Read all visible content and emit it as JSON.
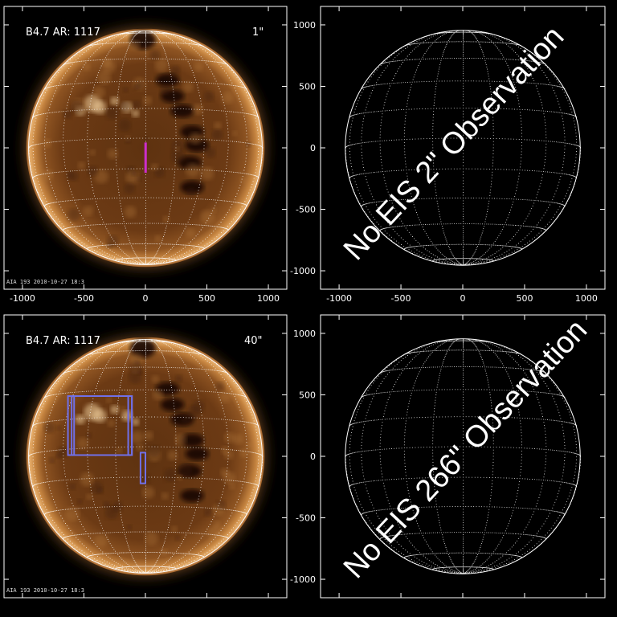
{
  "colors": {
    "background": "#000000",
    "frame": "#ffffff",
    "slit_marker": "#cc2fcc",
    "raster_box": "#7070e8",
    "label_white": "#ffffff",
    "label_magenta": "#cc44cc",
    "label_blue": "#8080ff",
    "sun_core": "#6a3a12",
    "sun_limb": "#e0a060"
  },
  "panels": [
    {
      "label_left": "B4.7  AR: 1117",
      "label_right": "1\"",
      "label_right_color": "#cc44cc",
      "stamp": "AIA 193 2010-10-27 18:3",
      "raster_boxes": [
        {
          "x1": -5,
          "x2": 5,
          "y1": -200,
          "y2": 40,
          "color": "#cc2fcc",
          "filled": true
        }
      ]
    },
    {
      "overlay_text": "No EIS 2\" Observation"
    },
    {
      "label_left": "B4.7  AR: 1117",
      "label_right": "40\"",
      "label_right_color": "#8080ff",
      "stamp": "AIA 193 2010-10-27 18:3",
      "raster_boxes": [
        {
          "x1": -630,
          "x2": -110,
          "y1": 10,
          "y2": 490,
          "color": "#7070e8",
          "filled": false
        },
        {
          "x1": -600,
          "x2": -580,
          "y1": 10,
          "y2": 490,
          "color": "#7070e8",
          "filled": false
        },
        {
          "x1": -140,
          "x2": -110,
          "y1": 10,
          "y2": 490,
          "color": "#7070e8",
          "filled": false
        },
        {
          "x1": -40,
          "x2": 0,
          "y1": -220,
          "y2": 30,
          "color": "#7070e8",
          "filled": false
        }
      ]
    },
    {
      "overlay_text": "No EIS 266\" Observation"
    }
  ],
  "chart_data": [
    {
      "type": "scatter",
      "xlim": [
        -1150,
        1150
      ],
      "ylim": [
        -1150,
        1150
      ],
      "x_tick_labels": [
        "-1000",
        "-500",
        "0",
        "500",
        "1000"
      ],
      "y_tick_labels": [],
      "solar_radius_arcsec": 950
    },
    {
      "type": "scatter",
      "xlim": [
        -1150,
        1150
      ],
      "ylim": [
        -1150,
        1150
      ],
      "x_tick_labels": [
        "-1000",
        "-500",
        "0",
        "500",
        "1000"
      ],
      "y_tick_labels": [
        "-1000",
        "-500",
        "0",
        "500",
        "1000"
      ],
      "solar_radius_arcsec": 950
    },
    {
      "type": "scatter",
      "xlim": [
        -1150,
        1150
      ],
      "ylim": [
        -1150,
        1150
      ],
      "x_tick_labels": [],
      "y_tick_labels": [],
      "solar_radius_arcsec": 950
    },
    {
      "type": "scatter",
      "xlim": [
        -1150,
        1150
      ],
      "ylim": [
        -1150,
        1150
      ],
      "x_tick_labels": [],
      "y_tick_labels": [
        "-1000",
        "-500",
        "0",
        "500",
        "1000"
      ],
      "solar_radius_arcsec": 950
    }
  ]
}
